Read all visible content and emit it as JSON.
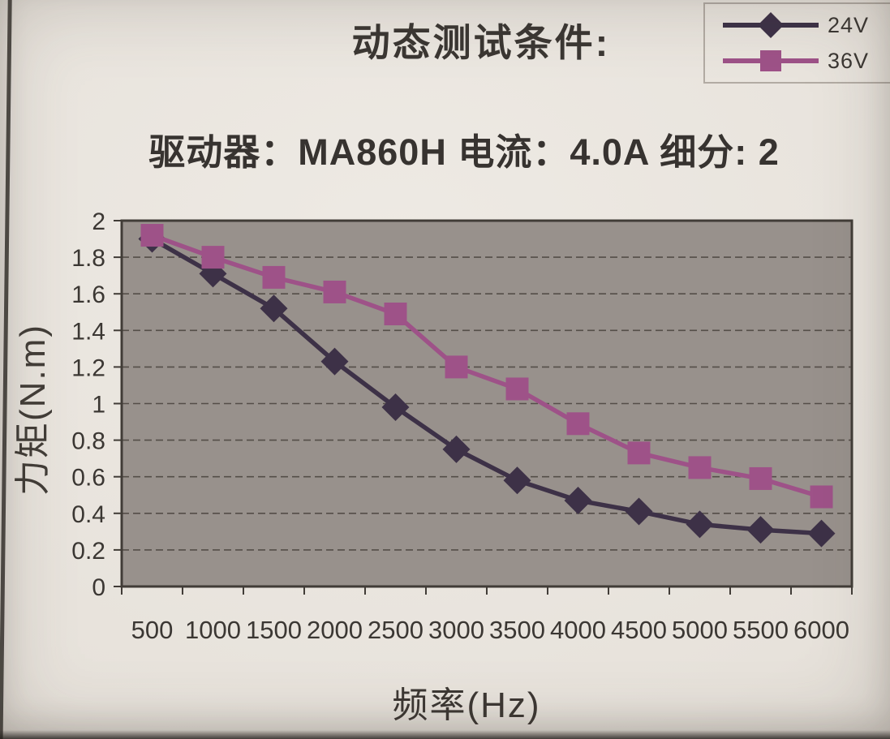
{
  "header": {
    "title": "动态测试条件:",
    "subtitle": "驱动器：MA860H  电流：4.0A  细分: 2"
  },
  "axes": {
    "x_title": "频率(Hz)",
    "y_title": "力矩(N.m)"
  },
  "legend": {
    "items": [
      {
        "label": "24V"
      },
      {
        "label": "36V"
      }
    ]
  },
  "chart_data": {
    "type": "line",
    "title": "动态测试条件:",
    "subtitle": "驱动器：MA860H  电流：4.0A  细分: 2",
    "xlabel": "频率(Hz)",
    "ylabel": "力矩(N.m)",
    "x": [
      500,
      1000,
      1500,
      2000,
      2500,
      3000,
      3500,
      4000,
      4500,
      5000,
      5500,
      6000
    ],
    "series": [
      {
        "name": "24V",
        "marker": "diamond",
        "color": "#3d3147",
        "values": [
          1.9,
          1.71,
          1.52,
          1.23,
          0.98,
          0.75,
          0.58,
          0.47,
          0.41,
          0.34,
          0.31,
          0.29
        ]
      },
      {
        "name": "36V",
        "marker": "square",
        "color": "#9e5288",
        "values": [
          1.92,
          1.8,
          1.69,
          1.61,
          1.49,
          1.2,
          1.08,
          0.89,
          0.73,
          0.65,
          0.59,
          0.49
        ]
      }
    ],
    "ylim": [
      0,
      2
    ],
    "ytick_step": 0.2,
    "grid": true,
    "legend_position": "top-right",
    "plot_bg": "#98918c",
    "grid_color": "#544e48",
    "axis_color": "#413c37",
    "text_color": "#3b3733"
  }
}
